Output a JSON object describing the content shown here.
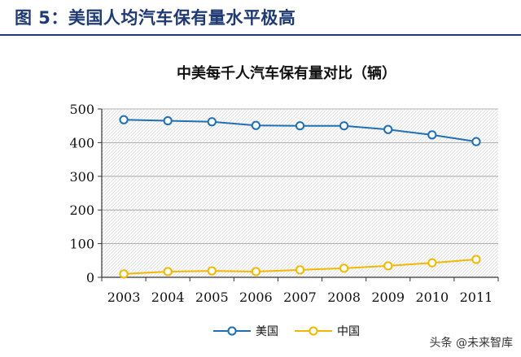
{
  "figure_title": "图 5：美国人均汽车保有量水平极高",
  "watermark": "头条 @未来智库",
  "colors": {
    "us": "#1e6fb4",
    "china": "#f2b800",
    "title": "#1f3a73"
  },
  "chart_data": {
    "type": "line",
    "title": "中美每千人汽车保有量对比（辆）",
    "categories": [
      "2003",
      "2004",
      "2005",
      "2006",
      "2007",
      "2008",
      "2009",
      "2010",
      "2011"
    ],
    "ylim": [
      0,
      500
    ],
    "yticks": [
      0,
      100,
      200,
      300,
      400,
      500
    ],
    "grid": true,
    "legend_position": "bottom",
    "series": [
      {
        "name": "美国",
        "color": "#1e6fb4",
        "values": [
          468,
          465,
          462,
          451,
          450,
          450,
          439,
          423,
          403
        ]
      },
      {
        "name": "中国",
        "color": "#f2b800",
        "values": [
          10,
          17,
          19,
          17,
          22,
          27,
          34,
          43,
          53
        ]
      }
    ]
  }
}
